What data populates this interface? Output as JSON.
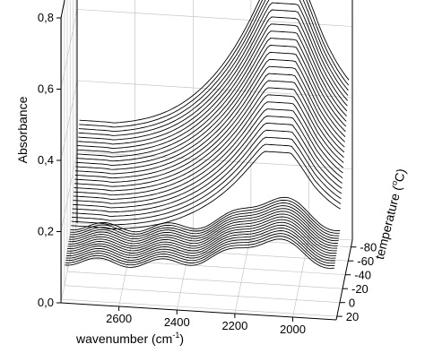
{
  "chart_data": {
    "type": "line",
    "subtype": "3d-waterfall",
    "xlabel": "wavenumber (cm",
    "xlabel_superscript": "-1",
    "xlabel_suffix": ")",
    "ylabel": "Absorbance",
    "zlabel": "temperature (",
    "zlabel_superscript": "o",
    "zlabel_suffix": "C)",
    "xlim": [
      2800,
      1850
    ],
    "ylim": [
      0.0,
      0.8
    ],
    "zlim": [
      -90,
      25
    ],
    "x_ticks": [
      {
        "value": 2600,
        "label": "2600"
      },
      {
        "value": 2400,
        "label": "2400"
      },
      {
        "value": 2200,
        "label": "2200"
      },
      {
        "value": 2000,
        "label": "2000"
      }
    ],
    "y_ticks": [
      {
        "value": 0.0,
        "label": "0,0"
      },
      {
        "value": 0.2,
        "label": "0,2"
      },
      {
        "value": 0.4,
        "label": "0,4"
      },
      {
        "value": 0.6,
        "label": "0,6"
      },
      {
        "value": 0.8,
        "label": "0,8"
      }
    ],
    "z_ticks": [
      {
        "value": -80,
        "label": "-80"
      },
      {
        "value": -60,
        "label": "-60"
      },
      {
        "value": -40,
        "label": "-40"
      },
      {
        "value": -20,
        "label": "-20"
      },
      {
        "value": 0,
        "label": "0"
      },
      {
        "value": 20,
        "label": "20"
      }
    ],
    "grid": true,
    "line_color": "#000000",
    "back_group": {
      "temperature_range": [
        -86,
        -26
      ],
      "num_curves": 26,
      "peak_x": 2070,
      "peak_y_range": [
        0.36,
        0.74
      ],
      "baseline_y_range": [
        0.1,
        0.27
      ],
      "shoulder_x": 2640,
      "shoulder_y_range": [
        0.12,
        0.3
      ]
    },
    "front_group": {
      "temperature_range": [
        -22,
        18
      ],
      "num_curves": 16,
      "peak_x": 2080,
      "peak_y_range": [
        0.2,
        0.24
      ],
      "baseline_y_range": [
        0.1,
        0.12
      ]
    }
  }
}
